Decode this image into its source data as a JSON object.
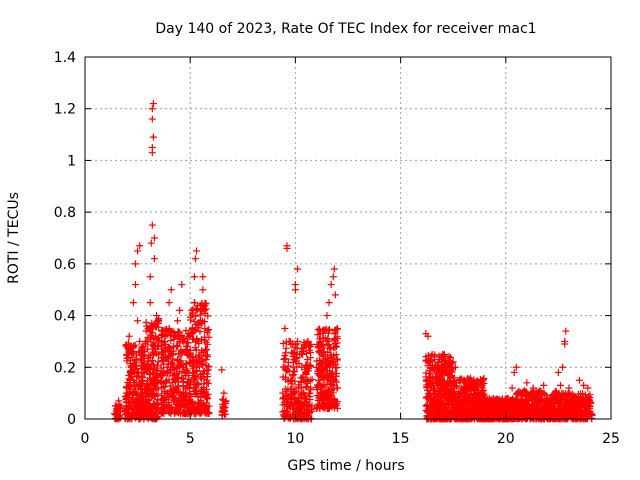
{
  "chart_data": {
    "type": "scatter",
    "title": "Day 140 of 2023, Rate Of TEC Index for receiver mac1",
    "xlabel": "GPS time / hours",
    "ylabel": "ROTI / TECUs",
    "xlim": [
      0,
      25
    ],
    "ylim": [
      0,
      1.4
    ],
    "grid": true,
    "marker": "+",
    "color": "#ff0000",
    "x_ticks": [
      "0",
      "5",
      "10",
      "15",
      "20",
      "25"
    ],
    "y_ticks": [
      "0",
      "0.2",
      "0.4",
      "0.6",
      "0.8",
      "1",
      "1.2",
      "1.4"
    ],
    "series": [
      {
        "name": "",
        "points": [
          [
            1.4,
            0.02
          ],
          [
            1.5,
            0.05
          ],
          [
            1.6,
            0.07
          ],
          [
            1.5,
            0.03
          ],
          [
            1.9,
            0.03
          ],
          [
            2.0,
            0.12
          ],
          [
            2.0,
            0.25
          ],
          [
            2.1,
            0.32
          ],
          [
            2.1,
            0.05
          ],
          [
            2.2,
            0.2
          ],
          [
            2.2,
            0.28
          ],
          [
            2.3,
            0.15
          ],
          [
            2.3,
            0.45
          ],
          [
            2.4,
            0.52
          ],
          [
            2.4,
            0.6
          ],
          [
            2.5,
            0.65
          ],
          [
            2.5,
            0.38
          ],
          [
            2.6,
            0.67
          ],
          [
            2.6,
            0.3
          ],
          [
            2.7,
            0.25
          ],
          [
            2.7,
            0.1
          ],
          [
            2.8,
            0.18
          ],
          [
            2.9,
            0.05
          ],
          [
            3.0,
            0.35
          ],
          [
            3.0,
            0.2
          ],
          [
            3.1,
            0.55
          ],
          [
            3.1,
            0.45
          ],
          [
            3.15,
            0.68
          ],
          [
            3.2,
            0.75
          ],
          [
            3.2,
            1.03
          ],
          [
            3.2,
            1.05
          ],
          [
            3.25,
            1.09
          ],
          [
            3.2,
            1.16
          ],
          [
            3.2,
            1.2
          ],
          [
            3.25,
            1.22
          ],
          [
            3.3,
            0.62
          ],
          [
            3.3,
            0.7
          ],
          [
            3.4,
            0.4
          ],
          [
            3.4,
            0.15
          ],
          [
            3.5,
            0.3
          ],
          [
            3.7,
            0.25
          ],
          [
            3.8,
            0.1
          ],
          [
            3.9,
            0.2
          ],
          [
            4.0,
            0.45
          ],
          [
            4.0,
            0.35
          ],
          [
            4.1,
            0.5
          ],
          [
            4.2,
            0.28
          ],
          [
            4.3,
            0.15
          ],
          [
            4.4,
            0.38
          ],
          [
            4.5,
            0.42
          ],
          [
            4.5,
            0.2
          ],
          [
            4.6,
            0.52
          ],
          [
            4.7,
            0.3
          ],
          [
            4.8,
            0.1
          ],
          [
            5.0,
            0.25
          ],
          [
            5.1,
            0.35
          ],
          [
            5.2,
            0.45
          ],
          [
            5.2,
            0.55
          ],
          [
            5.25,
            0.62
          ],
          [
            5.3,
            0.65
          ],
          [
            5.3,
            0.2
          ],
          [
            5.4,
            0.3
          ],
          [
            5.5,
            0.1
          ],
          [
            5.6,
            0.5
          ],
          [
            5.6,
            0.55
          ],
          [
            5.7,
            0.35
          ],
          [
            5.8,
            0.15
          ],
          [
            5.9,
            0.05
          ],
          [
            6.5,
            0.19
          ],
          [
            6.6,
            0.1
          ],
          [
            6.6,
            0.03
          ],
          [
            6.7,
            0.07
          ],
          [
            6.6,
            0.05
          ],
          [
            9.4,
            0.1
          ],
          [
            9.5,
            0.2
          ],
          [
            9.5,
            0.35
          ],
          [
            9.6,
            0.66
          ],
          [
            9.6,
            0.67
          ],
          [
            9.7,
            0.3
          ],
          [
            9.8,
            0.15
          ],
          [
            9.9,
            0.1
          ],
          [
            10.0,
            0.5
          ],
          [
            10.0,
            0.52
          ],
          [
            10.1,
            0.58
          ],
          [
            10.1,
            0.3
          ],
          [
            10.2,
            0.25
          ],
          [
            10.3,
            0.2
          ],
          [
            10.4,
            0.1
          ],
          [
            10.5,
            0.28
          ],
          [
            10.6,
            0.3
          ],
          [
            10.7,
            0.15
          ],
          [
            11.0,
            0.2
          ],
          [
            11.1,
            0.28
          ],
          [
            11.2,
            0.3
          ],
          [
            11.3,
            0.1
          ],
          [
            11.4,
            0.22
          ],
          [
            11.5,
            0.4
          ],
          [
            11.6,
            0.45
          ],
          [
            11.7,
            0.52
          ],
          [
            11.8,
            0.55
          ],
          [
            11.85,
            0.58
          ],
          [
            11.9,
            0.48
          ],
          [
            12.0,
            0.35
          ],
          [
            12.0,
            0.12
          ],
          [
            16.2,
            0.33
          ],
          [
            16.3,
            0.32
          ],
          [
            16.3,
            0.15
          ],
          [
            16.5,
            0.25
          ],
          [
            16.6,
            0.1
          ],
          [
            16.8,
            0.2
          ],
          [
            17.0,
            0.25
          ],
          [
            17.1,
            0.1
          ],
          [
            17.3,
            0.18
          ],
          [
            17.6,
            0.2
          ],
          [
            18.0,
            0.15
          ],
          [
            18.2,
            0.08
          ],
          [
            18.5,
            0.12
          ],
          [
            18.8,
            0.1
          ],
          [
            19.2,
            0.05
          ],
          [
            19.6,
            0.04
          ],
          [
            20.0,
            0.03
          ],
          [
            20.3,
            0.12
          ],
          [
            20.4,
            0.18
          ],
          [
            20.5,
            0.2
          ],
          [
            20.8,
            0.1
          ],
          [
            21.0,
            0.14
          ],
          [
            21.3,
            0.12
          ],
          [
            21.6,
            0.1
          ],
          [
            21.8,
            0.13
          ],
          [
            22.0,
            0.08
          ],
          [
            22.3,
            0.1
          ],
          [
            22.5,
            0.18
          ],
          [
            22.6,
            0.13
          ],
          [
            22.7,
            0.2
          ],
          [
            22.8,
            0.29
          ],
          [
            22.8,
            0.3
          ],
          [
            22.85,
            0.34
          ],
          [
            23.0,
            0.12
          ],
          [
            23.2,
            0.05
          ],
          [
            23.5,
            0.15
          ],
          [
            23.7,
            0.13
          ],
          [
            23.9,
            0.12
          ],
          [
            24.0,
            0.05
          ]
        ]
      }
    ]
  }
}
